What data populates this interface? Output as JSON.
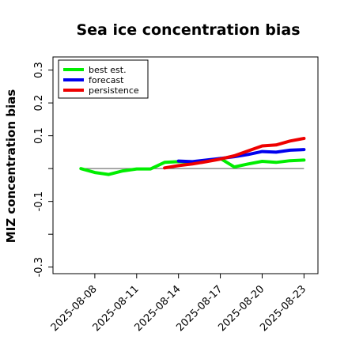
{
  "chart_data": {
    "type": "line",
    "title": "Sea ice concentration bias",
    "xlabel": "",
    "ylabel": "MIZ concentration bias",
    "x_type": "date",
    "xlim": [
      "2025-08-05",
      "2025-08-24"
    ],
    "ylim": [
      -0.32,
      0.34
    ],
    "yticks": [
      -0.3,
      -0.2,
      -0.1,
      0.0,
      0.1,
      0.2,
      0.3
    ],
    "ytick_labels": [
      "-0.3",
      "",
      "-0.1",
      "",
      "0.1",
      "0.2",
      "0.3"
    ],
    "xticks": [
      "2025-08-08",
      "2025-08-11",
      "2025-08-14",
      "2025-08-17",
      "2025-08-20",
      "2025-08-23"
    ],
    "xtick_labels": [
      "2025-08-08",
      "2025-08-11",
      "2025-08-14",
      "2025-08-17",
      "2025-08-20",
      "2025-08-23"
    ],
    "highlight_xtick": "2025-08-14",
    "highlight_color": "#228b22",
    "zero_line": true,
    "legend_position": "top-left",
    "series": [
      {
        "name": "best est.",
        "color": "#00ee00",
        "x": [
          "2025-08-07",
          "2025-08-08",
          "2025-08-09",
          "2025-08-10",
          "2025-08-11",
          "2025-08-12",
          "2025-08-13",
          "2025-08-14",
          "2025-08-15",
          "2025-08-16",
          "2025-08-17",
          "2025-08-18",
          "2025-08-19",
          "2025-08-20",
          "2025-08-21",
          "2025-08-22",
          "2025-08-23"
        ],
        "y": [
          0.0,
          -0.012,
          -0.018,
          -0.007,
          -0.001,
          -0.001,
          0.019,
          0.021,
          0.019,
          0.022,
          0.031,
          0.005,
          0.014,
          0.022,
          0.019,
          0.024,
          0.026
        ]
      },
      {
        "name": "forecast",
        "color": "#0000ee",
        "x": [
          "2025-08-14",
          "2025-08-15",
          "2025-08-16",
          "2025-08-17",
          "2025-08-18",
          "2025-08-19",
          "2025-08-20",
          "2025-08-21",
          "2025-08-22",
          "2025-08-23"
        ],
        "y": [
          0.023,
          0.021,
          0.026,
          0.031,
          0.036,
          0.043,
          0.052,
          0.05,
          0.056,
          0.058
        ]
      },
      {
        "name": "persistence",
        "color": "#ee0000",
        "x": [
          "2025-08-13",
          "2025-08-14",
          "2025-08-15",
          "2025-08-16",
          "2025-08-17",
          "2025-08-18",
          "2025-08-19",
          "2025-08-20",
          "2025-08-21",
          "2025-08-22",
          "2025-08-23"
        ],
        "y": [
          0.002,
          0.009,
          0.014,
          0.021,
          0.029,
          0.039,
          0.054,
          0.069,
          0.072,
          0.084,
          0.092
        ]
      }
    ]
  }
}
